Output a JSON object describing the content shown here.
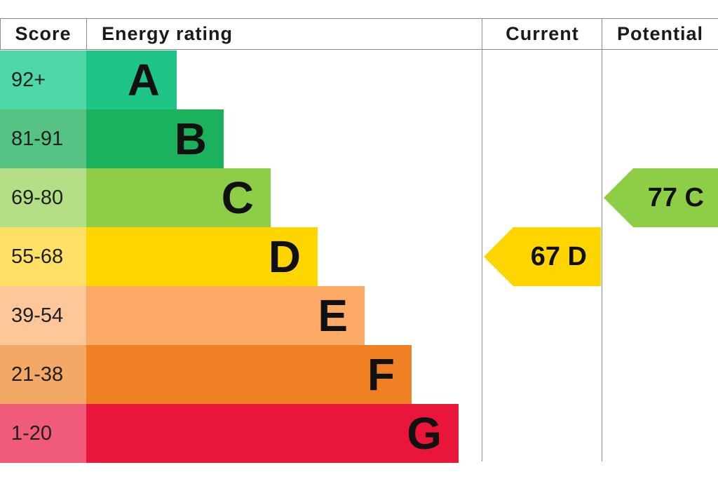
{
  "chart_data": {
    "type": "bar",
    "headers": {
      "score": "Score",
      "rating": "Energy rating",
      "current": "Current",
      "potential": "Potential"
    },
    "bands": [
      {
        "score": "92+",
        "letter": "A",
        "color": "#1ec586",
        "score_bg": "#4fd8a7"
      },
      {
        "score": "81-91",
        "letter": "B",
        "color": "#1cb25d",
        "score_bg": "#56c384"
      },
      {
        "score": "69-80",
        "letter": "C",
        "color": "#8dce46",
        "score_bg": "#b4de85"
      },
      {
        "score": "55-68",
        "letter": "D",
        "color": "#ffd500",
        "score_bg": "#ffe066"
      },
      {
        "score": "39-54",
        "letter": "E",
        "color": "#fcaa65",
        "score_bg": "#fdc79a"
      },
      {
        "score": "21-38",
        "letter": "F",
        "color": "#ef8023",
        "score_bg": "#f4a865"
      },
      {
        "score": "1-20",
        "letter": "G",
        "color": "#e9153b",
        "score_bg": "#ef5b78"
      }
    ],
    "current": {
      "value": 67,
      "band": "D",
      "label": "67 D",
      "color": "#ffd500"
    },
    "potential": {
      "value": 77,
      "band": "C",
      "label": "77 C",
      "color": "#8dce46"
    }
  }
}
